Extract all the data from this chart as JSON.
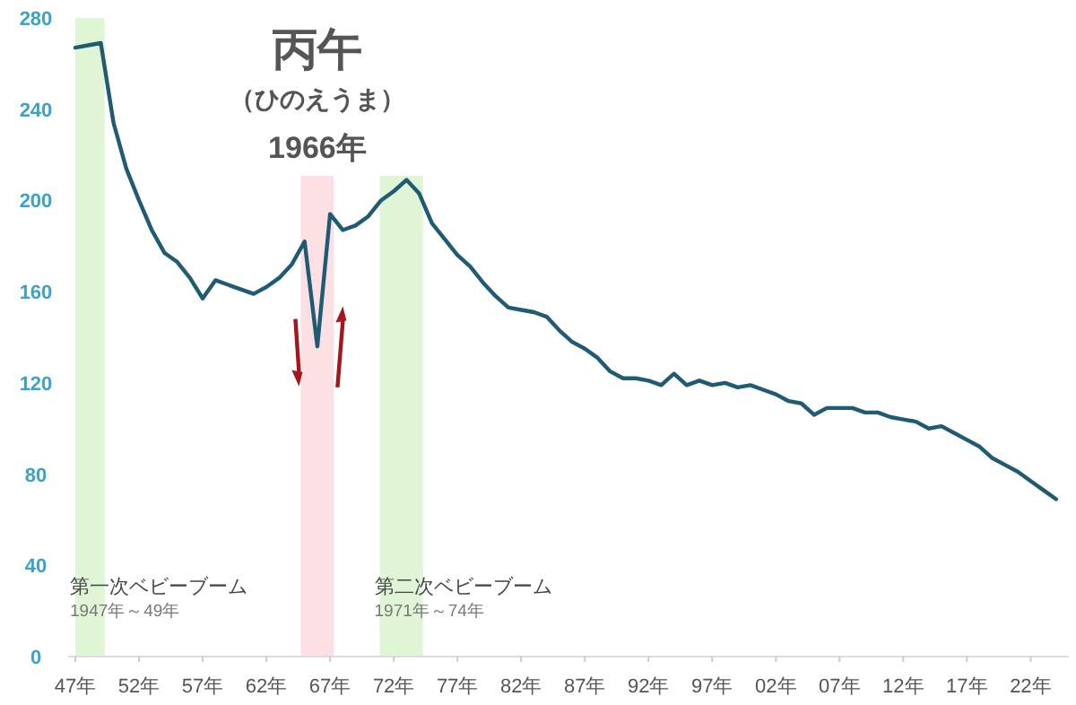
{
  "chart_data": {
    "type": "line",
    "title": "丙午",
    "subtitle": "（ひのえうま）",
    "categories": [
      "47年",
      null,
      null,
      null,
      null,
      "52年",
      null,
      null,
      null,
      null,
      "57年",
      null,
      null,
      null,
      null,
      "62年",
      null,
      null,
      null,
      null,
      "67年",
      null,
      null,
      null,
      null,
      "72年",
      null,
      null,
      null,
      null,
      "77年",
      null,
      null,
      null,
      null,
      "82年",
      null,
      null,
      null,
      null,
      "87年",
      null,
      null,
      null,
      null,
      "92年",
      null,
      null,
      null,
      null,
      "97年",
      null,
      null,
      null,
      null,
      "02年",
      null,
      null,
      null,
      null,
      "07年",
      null,
      null,
      null,
      null,
      "12年",
      null,
      null,
      null,
      null,
      "17年",
      null,
      null,
      null,
      null,
      "22年",
      null,
      null
    ],
    "series": [
      {
        "color": "#1f5c74",
        "values": [
          267,
          268,
          269,
          234,
          214,
          200,
          187,
          177,
          173,
          166,
          157,
          165,
          163,
          161,
          159,
          162,
          166,
          172,
          182,
          136,
          194,
          187,
          189,
          193,
          200,
          204,
          209,
          203,
          190,
          183,
          176,
          171,
          164,
          158,
          153,
          152,
          151,
          149,
          143,
          138,
          135,
          131,
          125,
          122,
          122,
          121,
          119,
          124,
          119,
          121,
          119,
          120,
          118,
          119,
          117,
          115,
          112,
          111,
          106,
          109,
          109,
          109,
          107,
          107,
          105,
          104,
          103,
          100,
          101,
          98,
          95,
          92,
          87,
          84,
          81,
          77,
          73,
          69
        ]
      }
    ],
    "ylim": [
      0,
      280
    ],
    "yticks": [
      0,
      40,
      80,
      120,
      160,
      200,
      240,
      280
    ],
    "annotations": [
      "第一次ベビーブーム",
      "1947年～49年",
      "第二次ベビーブーム",
      "1971年～74年",
      "1966年"
    ],
    "grid": false,
    "marker": "none",
    "line_style": "solid"
  }
}
